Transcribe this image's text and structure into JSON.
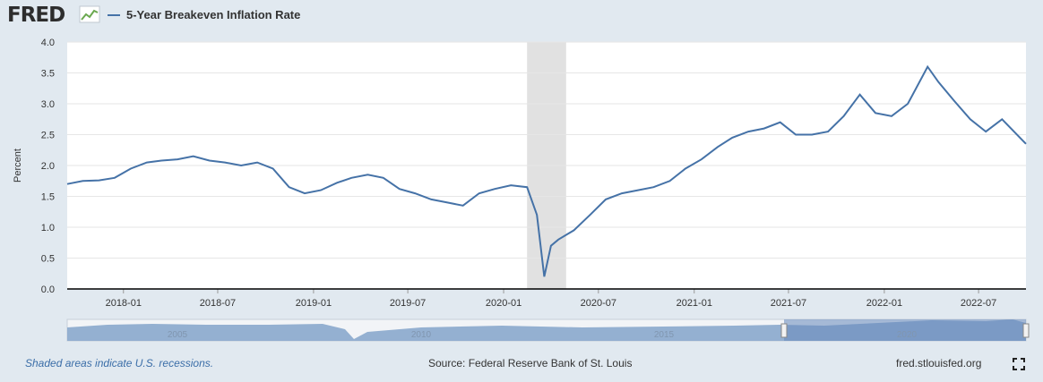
{
  "header": {
    "logo_text": "FRED",
    "legend_label": "5-Year Breakeven Inflation Rate"
  },
  "chart_data": {
    "type": "line",
    "ylabel": "Percent",
    "ylim": [
      0.0,
      4.0
    ],
    "yticks": [
      "0.0",
      "0.5",
      "1.0",
      "1.5",
      "2.0",
      "2.5",
      "3.0",
      "3.5",
      "4.0"
    ],
    "xticks": [
      "2018-01",
      "2018-07",
      "2019-01",
      "2019-07",
      "2020-01",
      "2020-07",
      "2021-01",
      "2021-07",
      "2022-01",
      "2022-07"
    ],
    "x_range": [
      "2017-09-15",
      "2022-09-30"
    ],
    "recessions": [
      {
        "start": "2020-02-15",
        "end": "2020-04-30"
      }
    ],
    "series": [
      {
        "name": "5-Year Breakeven Inflation Rate",
        "color": "#4572a7",
        "x": [
          "2017-09-15",
          "2017-10-15",
          "2017-11-15",
          "2017-12-15",
          "2018-01-15",
          "2018-02-15",
          "2018-03-15",
          "2018-04-15",
          "2018-05-15",
          "2018-06-15",
          "2018-07-15",
          "2018-08-15",
          "2018-09-15",
          "2018-10-15",
          "2018-11-15",
          "2018-12-15",
          "2019-01-15",
          "2019-02-15",
          "2019-03-15",
          "2019-04-15",
          "2019-05-15",
          "2019-06-15",
          "2019-07-15",
          "2019-08-15",
          "2019-09-15",
          "2019-10-15",
          "2019-11-15",
          "2019-12-15",
          "2020-01-15",
          "2020-02-15",
          "2020-03-05",
          "2020-03-19",
          "2020-04-01",
          "2020-04-15",
          "2020-05-15",
          "2020-06-15",
          "2020-07-15",
          "2020-08-15",
          "2020-09-15",
          "2020-10-15",
          "2020-11-15",
          "2020-12-15",
          "2021-01-15",
          "2021-02-15",
          "2021-03-15",
          "2021-04-15",
          "2021-05-15",
          "2021-06-15",
          "2021-07-15",
          "2021-08-15",
          "2021-09-15",
          "2021-10-15",
          "2021-11-15",
          "2021-12-15",
          "2022-01-15",
          "2022-02-15",
          "2022-03-25",
          "2022-04-15",
          "2022-05-15",
          "2022-06-15",
          "2022-07-15",
          "2022-08-15",
          "2022-09-30"
        ],
        "values": [
          1.7,
          1.75,
          1.76,
          1.8,
          1.95,
          2.05,
          2.08,
          2.1,
          2.15,
          2.08,
          2.05,
          2.0,
          2.05,
          1.95,
          1.65,
          1.55,
          1.6,
          1.72,
          1.8,
          1.85,
          1.8,
          1.62,
          1.55,
          1.45,
          1.4,
          1.35,
          1.55,
          1.62,
          1.68,
          1.65,
          1.2,
          0.2,
          0.7,
          0.8,
          0.95,
          1.2,
          1.45,
          1.55,
          1.6,
          1.65,
          1.75,
          1.95,
          2.1,
          2.3,
          2.45,
          2.55,
          2.6,
          2.7,
          2.5,
          2.5,
          2.55,
          2.8,
          3.15,
          2.85,
          2.8,
          3.0,
          3.6,
          3.35,
          3.05,
          2.75,
          2.55,
          2.75,
          2.35
        ]
      }
    ]
  },
  "navigator": {
    "labels": [
      "2005",
      "2010",
      "2015",
      "2020"
    ]
  },
  "footer": {
    "recession_note": "Shaded areas indicate U.S. recessions.",
    "source": "Source: Federal Reserve Bank of St. Louis",
    "site": "fred.stlouisfed.org"
  }
}
